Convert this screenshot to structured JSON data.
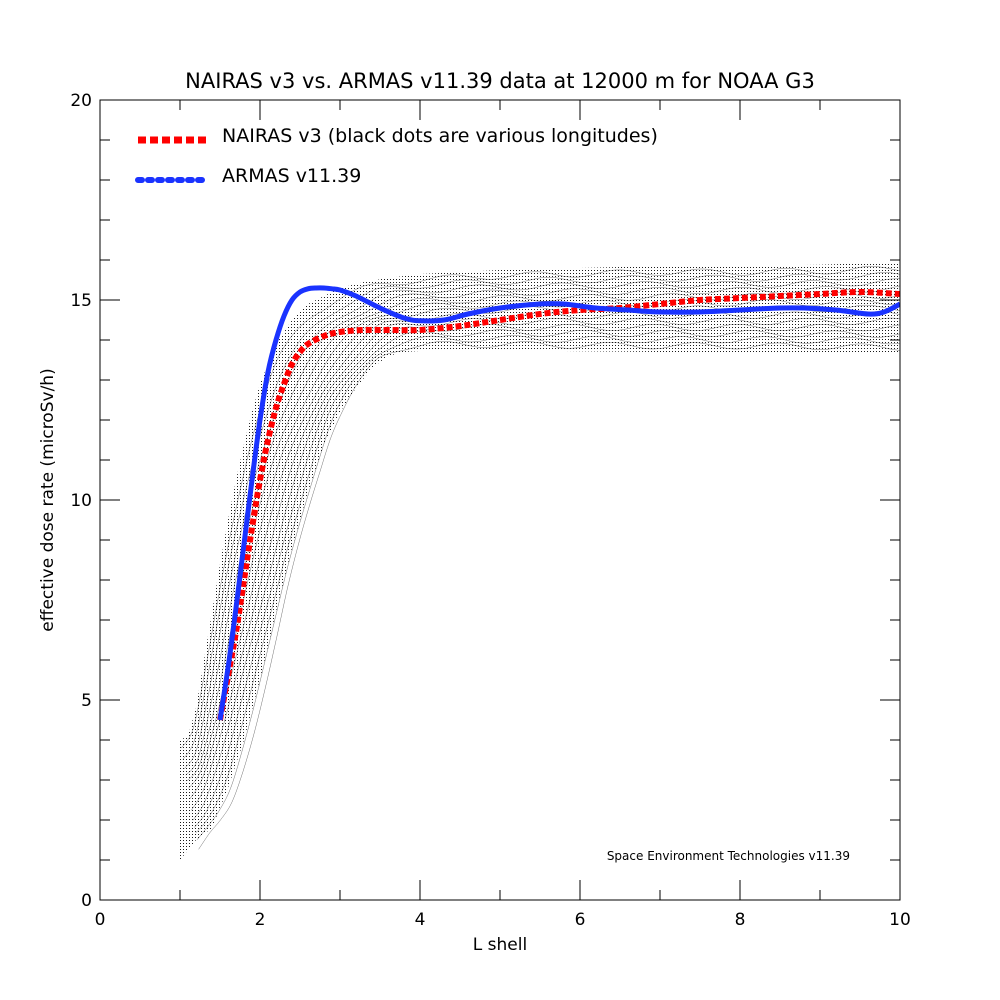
{
  "chart_data": {
    "type": "line",
    "title": "NAIRAS  v3 vs. ARMAS v11.39 data at 12000 m for NOAA G3",
    "xlabel": "L shell",
    "ylabel": "effective dose rate (microSv/h)",
    "xlim": [
      0,
      10
    ],
    "ylim": [
      0,
      20
    ],
    "xticks": [
      0,
      2,
      4,
      6,
      8,
      10
    ],
    "xtick_labels": [
      "0",
      "2",
      "4",
      "6",
      "8",
      "10"
    ],
    "yticks": [
      0,
      5,
      10,
      15,
      20
    ],
    "ytick_labels": [
      "0",
      "5",
      "10",
      "15",
      "20"
    ],
    "grid": false,
    "legend_position": "top-left",
    "credit": "Space Environment Technologies v11.39",
    "series": [
      {
        "name": "NAIRAS v3 (black dots are various longitudes)",
        "style": "dotted",
        "color": "#ff0000",
        "x": [
          1.5,
          1.6,
          1.7,
          1.8,
          1.9,
          2.0,
          2.1,
          2.2,
          2.3,
          2.4,
          2.5,
          2.6,
          2.8,
          3.0,
          3.3,
          3.6,
          4.0,
          4.5,
          5.0,
          5.5,
          6.0,
          6.5,
          7.0,
          7.5,
          8.0,
          8.5,
          9.0,
          9.5,
          10.0
        ],
        "y": [
          4.5,
          5.6,
          6.7,
          8.0,
          9.3,
          10.5,
          11.5,
          12.3,
          12.9,
          13.4,
          13.7,
          13.9,
          14.1,
          14.2,
          14.25,
          14.25,
          14.25,
          14.35,
          14.5,
          14.65,
          14.75,
          14.8,
          14.9,
          15.0,
          15.05,
          15.1,
          15.15,
          15.2,
          15.15
        ]
      },
      {
        "name": "ARMAS v11.39",
        "style": "solid",
        "color": "#1a33ff",
        "x": [
          1.5,
          1.6,
          1.7,
          1.8,
          1.9,
          2.0,
          2.1,
          2.2,
          2.3,
          2.4,
          2.5,
          2.6,
          2.7,
          2.8,
          2.9,
          3.0,
          3.2,
          3.5,
          3.8,
          4.0,
          4.3,
          4.6,
          5.0,
          5.5,
          5.8,
          6.2,
          6.6,
          7.0,
          7.5,
          8.0,
          8.5,
          8.8,
          9.2,
          9.6,
          9.8,
          10.0
        ],
        "y": [
          4.5,
          5.8,
          7.3,
          8.9,
          10.5,
          12.0,
          13.2,
          14.0,
          14.6,
          15.0,
          15.2,
          15.28,
          15.3,
          15.3,
          15.28,
          15.25,
          15.1,
          14.8,
          14.55,
          14.48,
          14.5,
          14.65,
          14.8,
          14.9,
          14.9,
          14.8,
          14.75,
          14.7,
          14.7,
          14.75,
          14.8,
          14.8,
          14.75,
          14.65,
          14.7,
          14.9
        ]
      }
    ],
    "scatter_band": {
      "name": "various longitudes",
      "color": "#000000",
      "lower_edge": {
        "x": [
          1.0,
          1.2,
          1.4,
          1.6,
          1.8,
          2.0,
          2.2,
          2.4,
          2.6,
          2.8,
          3.0,
          3.2,
          3.4,
          3.6,
          3.8,
          4.2,
          5.0,
          6.0,
          7.0,
          8.0,
          9.0,
          10.0
        ],
        "y": [
          1.0,
          1.5,
          1.8,
          2.8,
          4.0,
          5.5,
          7.2,
          8.8,
          10.2,
          11.4,
          12.2,
          12.8,
          13.3,
          13.6,
          13.7,
          13.75,
          13.75,
          13.72,
          13.7,
          13.7,
          13.68,
          13.65
        ]
      },
      "upper_edge": {
        "x": [
          1.0,
          1.1,
          1.2,
          1.3,
          1.4,
          1.5,
          1.6,
          1.7,
          1.8,
          1.9,
          2.0,
          2.2,
          2.4,
          2.6,
          2.8,
          3.0,
          3.3,
          3.6,
          4.0,
          5.0,
          6.0,
          7.0,
          8.0,
          9.0,
          10.0
        ],
        "y": [
          4.0,
          4.1,
          4.8,
          6.0,
          7.2,
          8.4,
          9.5,
          10.5,
          11.4,
          12.2,
          12.9,
          13.9,
          14.5,
          14.9,
          15.1,
          15.3,
          15.45,
          15.55,
          15.65,
          15.75,
          15.8,
          15.85,
          15.85,
          15.88,
          15.95
        ]
      }
    }
  }
}
